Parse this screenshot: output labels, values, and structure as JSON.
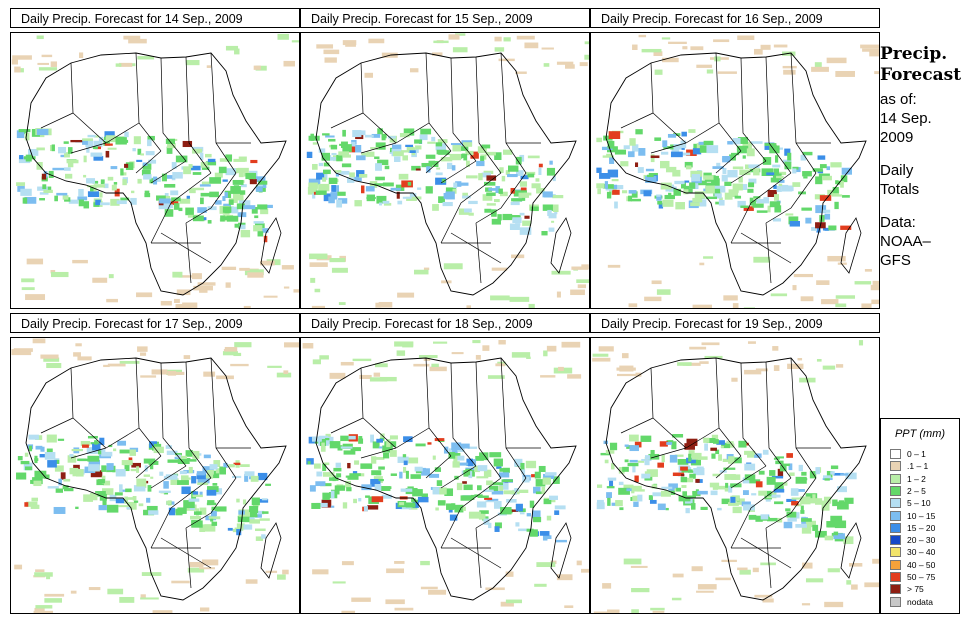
{
  "panels": [
    {
      "title": "Daily Precip. Forecast for  14 Sep., 2009"
    },
    {
      "title": "Daily Precip. Forecast for  15 Sep., 2009"
    },
    {
      "title": "Daily Precip. Forecast for  16 Sep., 2009"
    },
    {
      "title": "Daily Precip. Forecast for  17 Sep., 2009"
    },
    {
      "title": "Daily Precip. Forecast for  18 Sep., 2009"
    },
    {
      "title": "Daily Precip. Forecast for  19 Sep., 2009"
    }
  ],
  "sidebar": {
    "title_line1": "Precip.",
    "title_line2": "Forecast",
    "asof_line1": "as of:",
    "asof_line2": "14 Sep.",
    "asof_line3": "2009",
    "totals_line1": "Daily",
    "totals_line2": "Totals",
    "data_line1": "Data:",
    "data_line2": "NOAA–",
    "data_line3": "GFS"
  },
  "legend": {
    "title": "PPT (mm)",
    "entries": [
      {
        "label": "0 – 1",
        "color": "#ffffff"
      },
      {
        "label": ".1 – 1",
        "color": "#e9d3b4"
      },
      {
        "label": "1 – 2",
        "color": "#b9eea8"
      },
      {
        "label": "2 – 5",
        "color": "#63d86a"
      },
      {
        "label": "5 – 10",
        "color": "#b5dff2"
      },
      {
        "label": "10 – 15",
        "color": "#7cbdf0"
      },
      {
        "label": "15 – 20",
        "color": "#3b8ee8"
      },
      {
        "label": "20 – 30",
        "color": "#1548c8"
      },
      {
        "label": "30 – 40",
        "color": "#f2e46a"
      },
      {
        "label": "40 – 50",
        "color": "#f5a23a"
      },
      {
        "label": "50 – 75",
        "color": "#e23d1e"
      },
      {
        "label": "> 75",
        "color": "#8e1e12"
      },
      {
        "label": "nodata",
        "color": "#c8c8c8"
      }
    ]
  }
}
